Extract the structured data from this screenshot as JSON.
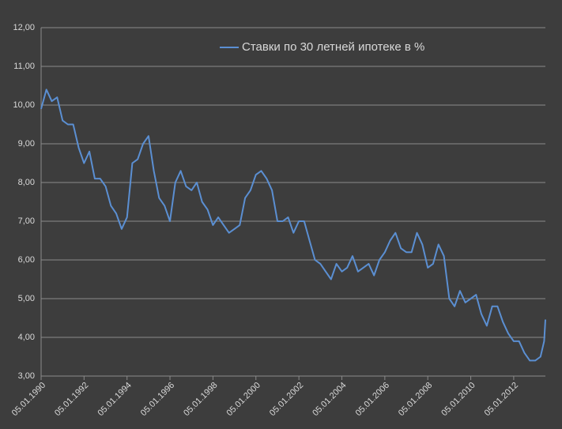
{
  "chart_data": {
    "type": "line",
    "x": [
      "05.01.1990",
      "05.04.1990",
      "05.07.1990",
      "05.10.1990",
      "05.01.1991",
      "05.04.1991",
      "05.07.1991",
      "05.10.1991",
      "05.01.1992",
      "05.04.1992",
      "05.07.1992",
      "05.10.1992",
      "05.01.1993",
      "05.04.1993",
      "05.07.1993",
      "05.10.1993",
      "05.01.1994",
      "05.04.1994",
      "05.07.1994",
      "05.10.1994",
      "05.01.1995",
      "05.04.1995",
      "05.07.1995",
      "05.10.1995",
      "05.01.1996",
      "05.04.1996",
      "05.07.1996",
      "05.10.1996",
      "05.01.1997",
      "05.04.1997",
      "05.07.1997",
      "05.10.1997",
      "05.01.1998",
      "05.04.1998",
      "05.07.1998",
      "05.10.1998",
      "05.01.1999",
      "05.04.1999",
      "05.07.1999",
      "05.10.1999",
      "05.01.2000",
      "05.04.2000",
      "05.07.2000",
      "05.10.2000",
      "05.01.2001",
      "05.04.2001",
      "05.07.2001",
      "05.10.2001",
      "05.01.2002",
      "05.04.2002",
      "05.07.2002",
      "05.10.2002",
      "05.01.2003",
      "05.04.2003",
      "05.07.2003",
      "05.10.2003",
      "05.01.2004",
      "05.04.2004",
      "05.07.2004",
      "05.10.2004",
      "05.01.2005",
      "05.04.2005",
      "05.07.2005",
      "05.10.2005",
      "05.01.2006",
      "05.04.2006",
      "05.07.2006",
      "05.10.2006",
      "05.01.2007",
      "05.04.2007",
      "05.07.2007",
      "05.10.2007",
      "05.01.2008",
      "05.04.2008",
      "05.07.2008",
      "05.10.2008",
      "05.01.2009",
      "05.04.2009",
      "05.07.2009",
      "05.10.2009",
      "05.01.2010",
      "05.04.2010",
      "05.07.2010",
      "05.10.2010",
      "05.01.2011",
      "05.04.2011",
      "05.07.2011",
      "05.10.2011",
      "05.01.2012",
      "05.04.2012",
      "05.07.2012",
      "05.10.2012",
      "05.01.2013",
      "05.04.2013",
      "05.06.2013",
      "27.06.2013"
    ],
    "series": [
      {
        "name": "Ставки по 30 летней ипотеке в %",
        "color": "#5b8fd2",
        "values": [
          9.9,
          10.4,
          10.1,
          10.2,
          9.6,
          9.5,
          9.5,
          8.9,
          8.5,
          8.8,
          8.1,
          8.1,
          7.9,
          7.4,
          7.2,
          6.8,
          7.1,
          8.5,
          8.6,
          9.0,
          9.2,
          8.3,
          7.6,
          7.4,
          7.0,
          8.0,
          8.3,
          7.9,
          7.8,
          8.0,
          7.5,
          7.3,
          6.9,
          7.1,
          6.9,
          6.7,
          6.8,
          6.9,
          7.6,
          7.8,
          8.2,
          8.3,
          8.1,
          7.8,
          7.0,
          7.0,
          7.1,
          6.7,
          7.0,
          7.0,
          6.5,
          6.0,
          5.9,
          5.7,
          5.5,
          5.9,
          5.7,
          5.8,
          6.1,
          5.7,
          5.8,
          5.9,
          5.6,
          6.0,
          6.2,
          6.5,
          6.7,
          6.3,
          6.2,
          6.2,
          6.7,
          6.4,
          5.8,
          5.9,
          6.4,
          6.1,
          5.0,
          4.8,
          5.2,
          4.9,
          5.0,
          5.1,
          4.6,
          4.3,
          4.8,
          4.8,
          4.4,
          4.1,
          3.9,
          3.9,
          3.6,
          3.4,
          3.4,
          3.5,
          3.9,
          4.46
        ]
      }
    ],
    "xlim": [
      "05.01.1990",
      "27.06.2013"
    ],
    "xticks": [
      "05.01.1990",
      "05.01.1992",
      "05.01.1994",
      "05.01.1996",
      "05.01.1998",
      "05.01.2000",
      "05.01.2002",
      "05.01.2004",
      "05.01.2006",
      "05.01.2008",
      "05.01.2010",
      "05.01.2012"
    ],
    "ylim": [
      3,
      12
    ],
    "yticks": [
      {
        "value": 3,
        "label": "3,00"
      },
      {
        "value": 4,
        "label": "4,00"
      },
      {
        "value": 5,
        "label": "5,00"
      },
      {
        "value": 6,
        "label": "6,00"
      },
      {
        "value": 7,
        "label": "7,00"
      },
      {
        "value": 8,
        "label": "8,00"
      },
      {
        "value": 9,
        "label": "9,00"
      },
      {
        "value": 10,
        "label": "10,00"
      },
      {
        "value": 11,
        "label": "11,00"
      },
      {
        "value": 12,
        "label": "12,00"
      }
    ],
    "grid": true,
    "legend": "top"
  }
}
